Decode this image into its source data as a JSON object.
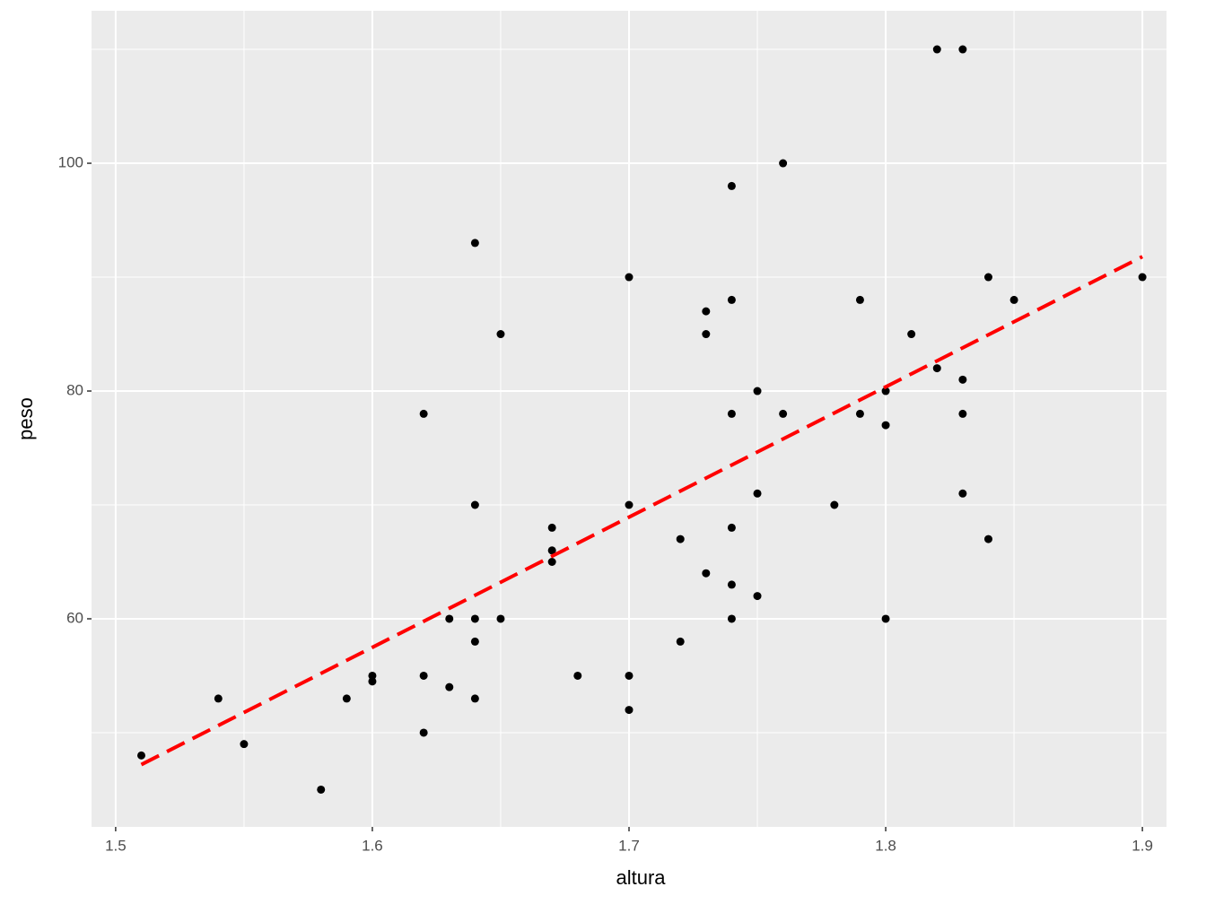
{
  "chart_data": {
    "type": "scatter",
    "x_label": "altura",
    "y_label": "peso",
    "xlim": [
      1.4906,
      1.9094
    ],
    "ylim": [
      41.73,
      113.39
    ],
    "xticks": [
      1.5,
      1.6,
      1.7,
      1.8,
      1.9
    ],
    "yticks": [
      60,
      80,
      100
    ],
    "x_minor_grid": [
      1.55,
      1.65,
      1.75,
      1.85
    ],
    "y_minor_grid": [
      50,
      70,
      90,
      110
    ],
    "grid": true,
    "background": "#ebebeb",
    "series": [
      {
        "color": "#000000",
        "x": [
          1.51,
          1.54,
          1.55,
          1.58,
          1.59,
          1.6,
          1.6,
          1.62,
          1.62,
          1.62,
          1.63,
          1.63,
          1.64,
          1.64,
          1.64,
          1.64,
          1.64,
          1.65,
          1.65,
          1.67,
          1.67,
          1.67,
          1.68,
          1.7,
          1.7,
          1.7,
          1.7,
          1.72,
          1.72,
          1.73,
          1.73,
          1.73,
          1.74,
          1.74,
          1.74,
          1.74,
          1.74,
          1.74,
          1.75,
          1.75,
          1.75,
          1.76,
          1.76,
          1.78,
          1.79,
          1.79,
          1.8,
          1.8,
          1.8,
          1.81,
          1.82,
          1.82,
          1.83,
          1.83,
          1.83,
          1.83,
          1.84,
          1.84,
          1.85,
          1.9
        ],
        "values": [
          48,
          53,
          49,
          45,
          53,
          55,
          54.5,
          78,
          55,
          50,
          60,
          54,
          93,
          70,
          60,
          58,
          53,
          85,
          60,
          68,
          66,
          65,
          55,
          90,
          70,
          55,
          52,
          67,
          58,
          87,
          85,
          64,
          98,
          88,
          78,
          68,
          63,
          60,
          80,
          71,
          62,
          100,
          78,
          70,
          88,
          78,
          80,
          77,
          60,
          85,
          110,
          82,
          110,
          81,
          78,
          71,
          90,
          67,
          88,
          90
        ]
      },
      {
        "type": "line",
        "color": "#ff0000",
        "dashed": true,
        "x": [
          1.51,
          1.9
        ],
        "values": [
          47.2,
          91.8
        ]
      }
    ]
  }
}
